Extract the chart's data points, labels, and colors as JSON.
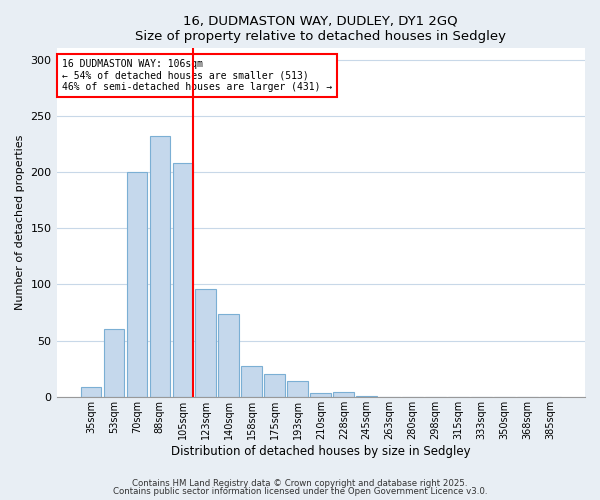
{
  "title": "16, DUDMASTON WAY, DUDLEY, DY1 2GQ",
  "subtitle": "Size of property relative to detached houses in Sedgley",
  "xlabel": "Distribution of detached houses by size in Sedgley",
  "ylabel": "Number of detached properties",
  "bar_labels": [
    "35sqm",
    "53sqm",
    "70sqm",
    "88sqm",
    "105sqm",
    "123sqm",
    "140sqm",
    "158sqm",
    "175sqm",
    "193sqm",
    "210sqm",
    "228sqm",
    "245sqm",
    "263sqm",
    "280sqm",
    "298sqm",
    "315sqm",
    "333sqm",
    "350sqm",
    "368sqm",
    "385sqm"
  ],
  "bar_values": [
    9,
    60,
    200,
    232,
    208,
    96,
    74,
    27,
    20,
    14,
    3,
    4,
    1,
    0,
    0,
    0,
    0,
    0,
    0,
    0,
    0
  ],
  "bar_color": "#c5d8ec",
  "bar_edge_color": "#7bafd4",
  "vline_color": "red",
  "vline_bar_index": 4,
  "annotation_line1": "16 DUDMASTON WAY: 106sqm",
  "annotation_line2": "← 54% of detached houses are smaller (513)",
  "annotation_line3": "46% of semi-detached houses are larger (431) →",
  "annotation_box_color": "white",
  "annotation_box_edge_color": "red",
  "ylim": [
    0,
    310
  ],
  "yticks": [
    0,
    50,
    100,
    150,
    200,
    250,
    300
  ],
  "footer1": "Contains HM Land Registry data © Crown copyright and database right 2025.",
  "footer2": "Contains public sector information licensed under the Open Government Licence v3.0.",
  "bg_color": "#e8eef4",
  "plot_bg_color": "#ffffff",
  "grid_color": "#c8d8e8",
  "figwidth": 6.0,
  "figheight": 5.0,
  "dpi": 100
}
